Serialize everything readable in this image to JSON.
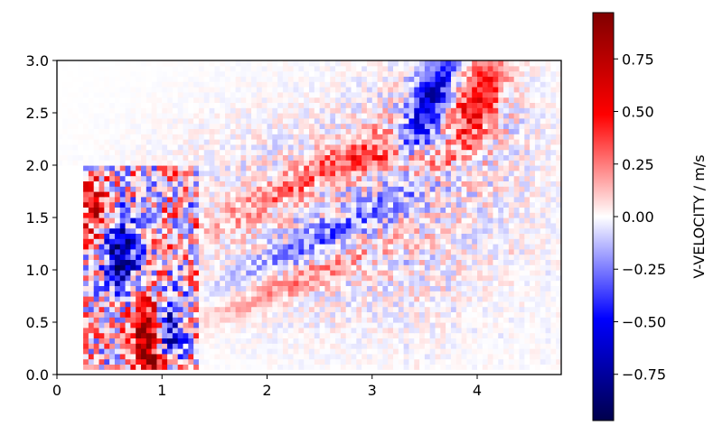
{
  "chart_data": {
    "type": "heatmap",
    "title": "",
    "xlabel": "",
    "ylabel": "",
    "xlim": [
      0,
      4.8
    ],
    "ylim": [
      0,
      3.0
    ],
    "x_ticks": [
      "0",
      "1",
      "2",
      "3",
      "4"
    ],
    "y_ticks": [
      "0.0",
      "0.5",
      "1.0",
      "1.5",
      "2.0",
      "2.5",
      "3.0"
    ],
    "colormap": "seismic",
    "colormap_stops": [
      "#00004c",
      "#0000ff",
      "#ffffff",
      "#ff0000",
      "#800000"
    ],
    "colorbar": {
      "label": "V-VELOCITY / m/s",
      "range": [
        -0.97,
        0.97
      ],
      "ticks": [
        "−0.75",
        "−0.50",
        "−0.25",
        "0.00",
        "0.25",
        "0.50",
        "0.75"
      ]
    },
    "grid": false,
    "empty_region": {
      "x": [
        0,
        0.27
      ],
      "y": [
        0,
        2.0
      ]
    },
    "domain": {
      "lower_block_x": [
        0.27,
        4.8
      ],
      "lower_block_y": [
        0,
        2.0
      ],
      "upper_block_x": [
        0,
        4.8
      ],
      "upper_block_y": [
        2.0,
        3.0
      ]
    },
    "features": [
      {
        "desc": "inner-left field",
        "x": [
          0.27,
          1.3
        ],
        "y": [
          0.05,
          2.0
        ],
        "mean": 0.1,
        "spread": 0.9
      },
      {
        "desc": "blue cluster",
        "x": [
          0.45,
          0.85
        ],
        "y": [
          0.75,
          1.55
        ],
        "mean": -0.75
      },
      {
        "desc": "red cluster low",
        "x": [
          0.7,
          1.1
        ],
        "y": [
          0.1,
          0.75
        ],
        "mean": 0.65
      },
      {
        "desc": "blue cluster low",
        "x": [
          0.9,
          1.25
        ],
        "y": [
          0.1,
          0.85
        ],
        "mean": -0.55
      },
      {
        "desc": "red plume",
        "x": [
          1.5,
          3.6
        ],
        "y": [
          1.3,
          2.1
        ],
        "mean": 0.3
      },
      {
        "desc": "blue plume",
        "x": [
          2.0,
          3.4
        ],
        "y": [
          0.9,
          1.6
        ],
        "mean": -0.3
      },
      {
        "desc": "blue upper plume",
        "x": [
          3.2,
          4.0
        ],
        "y": [
          2.0,
          2.95
        ],
        "mean": -0.6
      },
      {
        "desc": "red upper plume",
        "x": [
          3.8,
          4.5
        ],
        "y": [
          2.3,
          3.0
        ],
        "mean": 0.45
      }
    ]
  }
}
